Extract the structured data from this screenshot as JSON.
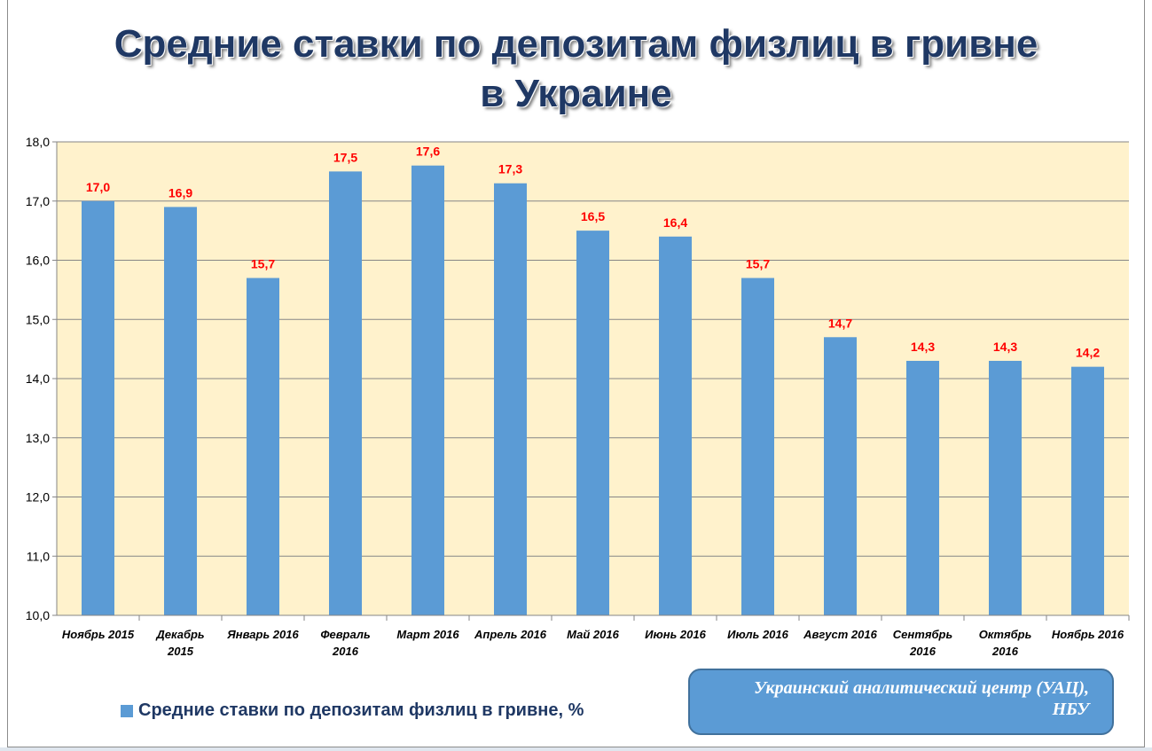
{
  "chart_data": {
    "type": "bar",
    "title_line1": "Средние ставки по депозитам физлиц в гривне",
    "title_line2": "в Украине",
    "categories": [
      "Ноябрь 2015",
      "Декабрь 2015",
      "Январь 2016",
      "Февраль 2016",
      "Март 2016",
      "Апрель 2016",
      "Май 2016",
      "Июнь 2016",
      "Июль 2016",
      "Август 2016",
      "Сентябрь 2016",
      "Октябрь 2016",
      "Ноябрь 2016"
    ],
    "series": [
      {
        "name": "Средние ставки по депозитам  физлиц в гривне, %",
        "values": [
          17.0,
          16.9,
          15.7,
          17.5,
          17.6,
          17.3,
          16.5,
          16.4,
          15.7,
          14.7,
          14.3,
          14.3,
          14.2
        ]
      }
    ],
    "data_labels": [
      "17,0",
      "16,9",
      "15,7",
      "17,5",
      "17,6",
      "17,3",
      "16,5",
      "16,4",
      "15,7",
      "14,7",
      "14,3",
      "14,3",
      "14,2"
    ],
    "yticks": [
      "10,0",
      "11,0",
      "12,0",
      "13,0",
      "14,0",
      "15,0",
      "16,0",
      "17,0",
      "18,0"
    ],
    "ylim": [
      10,
      18
    ],
    "xlabel": "",
    "ylabel": "",
    "grid": true,
    "legend_placement": "bottom-left",
    "colors": {
      "bar": "#5b9bd5",
      "plot_bg": "#fff2cc",
      "data_label": "#ff0000"
    }
  },
  "source_note": {
    "line1": "Украинский аналитический центр (УАЦ),",
    "line2": "НБУ"
  }
}
